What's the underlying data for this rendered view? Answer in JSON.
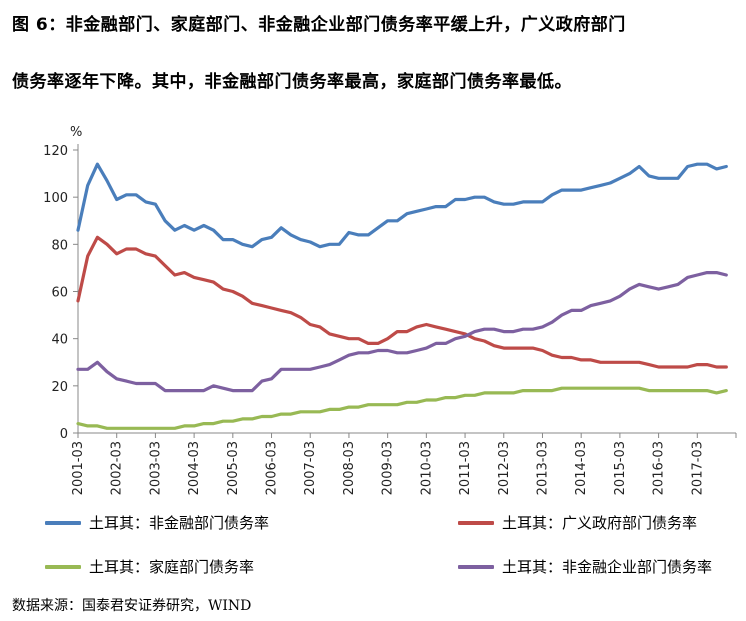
{
  "figure": {
    "title_line1": "图 6：非金融部门、家庭部门、非金融企业部门债务率平缓上升，广义政府部门",
    "title_line2": "债务率逐年下降。其中，非金融部门债务率最高，家庭部门债务率最低。",
    "source": "数据来源：国泰君安证券研究，WIND"
  },
  "chart_data": {
    "type": "line",
    "title": "",
    "ylabel": "%",
    "xlabel": "",
    "ylim": [
      0,
      120
    ],
    "yticks": [
      0,
      20,
      40,
      60,
      80,
      100,
      120
    ],
    "xticks": [
      "2001-03",
      "2002-03",
      "2003-03",
      "2004-03",
      "2005-03",
      "2006-03",
      "2007-03",
      "2008-03",
      "2009-03",
      "2010-03",
      "2011-03",
      "2012-03",
      "2013-03",
      "2014-03",
      "2015-03",
      "2016-03",
      "2017-03"
    ],
    "grid": false,
    "legend_position": "bottom",
    "x": [
      2001.0,
      2001.25,
      2001.5,
      2001.75,
      2002.0,
      2002.25,
      2002.5,
      2002.75,
      2003.0,
      2003.25,
      2003.5,
      2003.75,
      2004.0,
      2004.25,
      2004.5,
      2004.75,
      2005.0,
      2005.25,
      2005.5,
      2005.75,
      2006.0,
      2006.25,
      2006.5,
      2006.75,
      2007.0,
      2007.25,
      2007.5,
      2007.75,
      2008.0,
      2008.25,
      2008.5,
      2008.75,
      2009.0,
      2009.25,
      2009.5,
      2009.75,
      2010.0,
      2010.25,
      2010.5,
      2010.75,
      2011.0,
      2011.25,
      2011.5,
      2011.75,
      2012.0,
      2012.25,
      2012.5,
      2012.75,
      2013.0,
      2013.25,
      2013.5,
      2013.75,
      2014.0,
      2014.25,
      2014.5,
      2014.75,
      2015.0,
      2015.25,
      2015.5,
      2015.75,
      2016.0,
      2016.25,
      2016.5,
      2016.75,
      2017.0,
      2017.25,
      2017.5,
      2017.75
    ],
    "series": [
      {
        "name": "土耳其：非金融部门债务率",
        "color": "#4a7ebb",
        "values": [
          86,
          105,
          114,
          107,
          99,
          101,
          101,
          98,
          97,
          90,
          86,
          88,
          86,
          88,
          86,
          82,
          82,
          80,
          79,
          82,
          83,
          87,
          84,
          82,
          81,
          79,
          80,
          80,
          85,
          84,
          84,
          87,
          90,
          90,
          93,
          94,
          95,
          96,
          96,
          99,
          99,
          100,
          100,
          98,
          97,
          97,
          98,
          98,
          98,
          101,
          103,
          103,
          103,
          104,
          105,
          106,
          108,
          110,
          113,
          109,
          108,
          108,
          108,
          113,
          114,
          114,
          112,
          113
        ]
      },
      {
        "name": "土耳其：广义政府部门债务率",
        "color": "#be4b48",
        "values": [
          56,
          75,
          83,
          80,
          76,
          78,
          78,
          76,
          75,
          71,
          67,
          68,
          66,
          65,
          64,
          61,
          60,
          58,
          55,
          54,
          53,
          52,
          51,
          49,
          46,
          45,
          42,
          41,
          40,
          40,
          38,
          38,
          40,
          43,
          43,
          45,
          46,
          45,
          44,
          43,
          42,
          40,
          39,
          37,
          36,
          36,
          36,
          36,
          35,
          33,
          32,
          32,
          31,
          31,
          30,
          30,
          30,
          30,
          30,
          29,
          28,
          28,
          28,
          28,
          29,
          29,
          28,
          28
        ]
      },
      {
        "name": "土耳其：家庭部门债务率",
        "color": "#98b954",
        "values": [
          4,
          3,
          3,
          2,
          2,
          2,
          2,
          2,
          2,
          2,
          2,
          3,
          3,
          4,
          4,
          5,
          5,
          6,
          6,
          7,
          7,
          8,
          8,
          9,
          9,
          9,
          10,
          10,
          11,
          11,
          12,
          12,
          12,
          12,
          13,
          13,
          14,
          14,
          15,
          15,
          16,
          16,
          17,
          17,
          17,
          17,
          18,
          18,
          18,
          18,
          19,
          19,
          19,
          19,
          19,
          19,
          19,
          19,
          19,
          18,
          18,
          18,
          18,
          18,
          18,
          18,
          17,
          18
        ]
      },
      {
        "name": "土耳其：非金融企业部门债务率",
        "color": "#7d60a0",
        "values": [
          27,
          27,
          30,
          26,
          23,
          22,
          21,
          21,
          21,
          18,
          18,
          18,
          18,
          18,
          20,
          19,
          18,
          18,
          18,
          22,
          23,
          27,
          27,
          27,
          27,
          28,
          29,
          31,
          33,
          34,
          34,
          35,
          35,
          34,
          34,
          35,
          36,
          38,
          38,
          40,
          41,
          43,
          44,
          44,
          43,
          43,
          44,
          44,
          45,
          47,
          50,
          52,
          52,
          54,
          55,
          56,
          58,
          61,
          63,
          62,
          61,
          62,
          63,
          66,
          67,
          68,
          68,
          67
        ]
      }
    ]
  }
}
